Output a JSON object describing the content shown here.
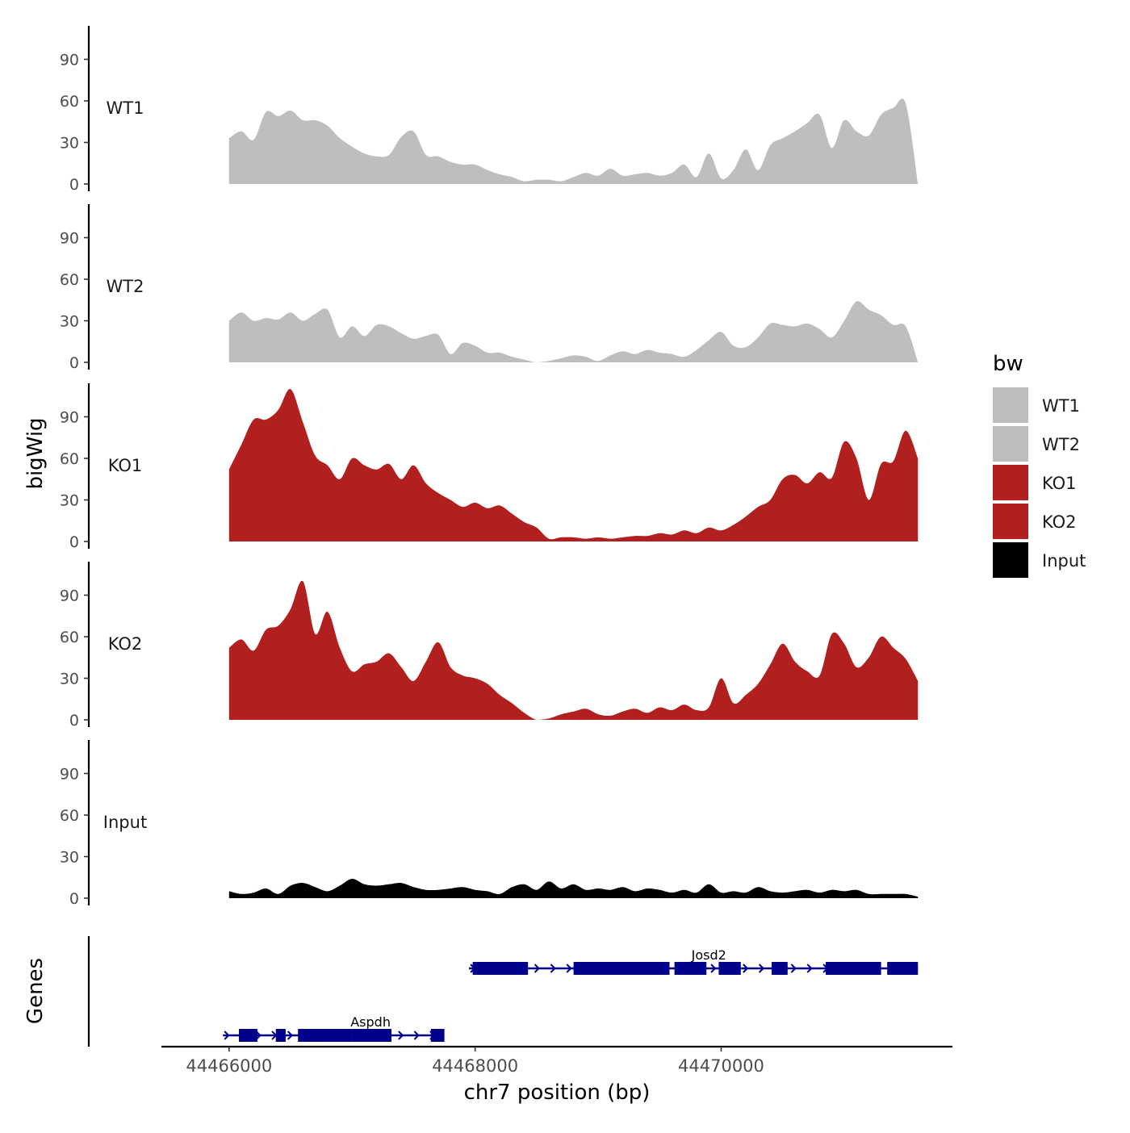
{
  "chart_data": {
    "type": "area",
    "chromosome": "chr7",
    "xlabel": "chr7 position (bp)",
    "ylabel": "bigWig",
    "genes_label": "Genes",
    "xlim": [
      44465450,
      44471880
    ],
    "x_ticks": [
      44466000,
      44468000,
      44470000
    ],
    "x_tick_labels": [
      "44466000",
      "44468000",
      "44470000"
    ],
    "ylim": [
      0,
      115
    ],
    "y_ticks": [
      0,
      30,
      60,
      90
    ],
    "y_tick_labels": [
      "0",
      "30",
      "60",
      "90"
    ],
    "region": [
      44466000,
      44471600
    ],
    "legend": {
      "title": "bw",
      "entries": [
        {
          "label": "WT1",
          "color": "#bebebe"
        },
        {
          "label": "WT2",
          "color": "#bebebe"
        },
        {
          "label": "KO1",
          "color": "#b21f1f"
        },
        {
          "label": "KO2",
          "color": "#b21f1f"
        },
        {
          "label": "Input",
          "color": "#000000"
        }
      ]
    },
    "series": [
      {
        "name": "WT1",
        "color": "#bebebe",
        "x": [
          44466000,
          44466100,
          44466200,
          44466300,
          44466400,
          44466500,
          44466600,
          44466700,
          44466800,
          44466900,
          44467000,
          44467100,
          44467200,
          44467300,
          44467400,
          44467500,
          44467600,
          44467700,
          44467800,
          44467900,
          44468000,
          44468100,
          44468200,
          44468300,
          44468400,
          44468500,
          44468600,
          44468700,
          44468800,
          44468900,
          44469000,
          44469100,
          44469200,
          44469300,
          44469400,
          44469500,
          44469600,
          44469700,
          44469800,
          44469900,
          44470000,
          44470100,
          44470200,
          44470300,
          44470400,
          44470500,
          44470600,
          44470700,
          44470800,
          44470900,
          44471000,
          44471100,
          44471200,
          44471300,
          44471400,
          44471500,
          44471600
        ],
        "values": [
          33,
          38,
          32,
          52,
          49,
          53,
          46,
          46,
          42,
          33,
          27,
          22,
          20,
          21,
          34,
          38,
          21,
          20,
          16,
          14,
          14,
          10,
          7,
          5,
          2,
          3,
          3,
          2,
          5,
          8,
          6,
          11,
          6,
          7,
          8,
          6,
          8,
          14,
          5,
          22,
          4,
          10,
          25,
          10,
          28,
          33,
          38,
          44,
          50,
          26,
          46,
          38,
          35,
          50,
          55,
          58,
          0
        ]
      },
      {
        "name": "WT2",
        "color": "#bebebe",
        "x": [
          44466000,
          44466100,
          44466200,
          44466300,
          44466400,
          44466500,
          44466600,
          44466700,
          44466800,
          44466900,
          44467000,
          44467100,
          44467200,
          44467300,
          44467400,
          44467500,
          44467600,
          44467700,
          44467800,
          44467900,
          44468000,
          44468100,
          44468200,
          44468300,
          44468400,
          44468500,
          44468600,
          44468700,
          44468800,
          44468900,
          44469000,
          44469100,
          44469200,
          44469300,
          44469400,
          44469500,
          44469600,
          44469700,
          44469800,
          44469900,
          44470000,
          44470100,
          44470200,
          44470300,
          44470400,
          44470500,
          44470600,
          44470700,
          44470800,
          44470900,
          44471000,
          44471100,
          44471200,
          44471300,
          44471400,
          44471500,
          44471600
        ],
        "values": [
          30,
          36,
          30,
          32,
          31,
          36,
          30,
          35,
          38,
          18,
          26,
          19,
          27,
          26,
          21,
          17,
          19,
          20,
          6,
          14,
          12,
          7,
          7,
          4,
          2,
          0,
          1,
          3,
          5,
          4,
          1,
          5,
          8,
          6,
          9,
          7,
          6,
          4,
          9,
          16,
          22,
          12,
          11,
          18,
          28,
          27,
          26,
          28,
          24,
          18,
          30,
          44,
          38,
          34,
          27,
          26,
          0
        ]
      },
      {
        "name": "KO1",
        "color": "#b21f1f",
        "x": [
          44466000,
          44466100,
          44466200,
          44466300,
          44466400,
          44466500,
          44466600,
          44466700,
          44466800,
          44466900,
          44467000,
          44467100,
          44467200,
          44467300,
          44467400,
          44467500,
          44467600,
          44467700,
          44467800,
          44467900,
          44468000,
          44468100,
          44468200,
          44468300,
          44468400,
          44468500,
          44468600,
          44468700,
          44468800,
          44468900,
          44469000,
          44469100,
          44469200,
          44469300,
          44469400,
          44469500,
          44469600,
          44469700,
          44469800,
          44469900,
          44470000,
          44470100,
          44470200,
          44470300,
          44470400,
          44470500,
          44470600,
          44470700,
          44470800,
          44470900,
          44471000,
          44471100,
          44471200,
          44471300,
          44471400,
          44471500,
          44471600
        ],
        "values": [
          52,
          70,
          88,
          88,
          95,
          110,
          86,
          62,
          55,
          45,
          60,
          55,
          52,
          56,
          45,
          55,
          42,
          35,
          30,
          25,
          28,
          24,
          26,
          20,
          14,
          10,
          2,
          3,
          3,
          2,
          3,
          2,
          3,
          4,
          4,
          6,
          5,
          8,
          6,
          10,
          8,
          12,
          18,
          25,
          30,
          45,
          48,
          42,
          50,
          46,
          72,
          60,
          30,
          56,
          58,
          80,
          60
        ]
      },
      {
        "name": "KO2",
        "color": "#b21f1f",
        "x": [
          44466000,
          44466100,
          44466200,
          44466300,
          44466400,
          44466500,
          44466600,
          44466700,
          44466800,
          44466900,
          44467000,
          44467100,
          44467200,
          44467300,
          44467400,
          44467500,
          44467600,
          44467700,
          44467800,
          44467900,
          44468000,
          44468100,
          44468200,
          44468300,
          44468400,
          44468500,
          44468600,
          44468700,
          44468800,
          44468900,
          44469000,
          44469100,
          44469200,
          44469300,
          44469400,
          44469500,
          44469600,
          44469700,
          44469800,
          44469900,
          44470000,
          44470100,
          44470200,
          44470300,
          44470400,
          44470500,
          44470600,
          44470700,
          44470800,
          44470900,
          44471000,
          44471100,
          44471200,
          44471300,
          44471400,
          44471500,
          44471600
        ],
        "values": [
          52,
          58,
          50,
          65,
          68,
          80,
          100,
          62,
          78,
          52,
          35,
          40,
          42,
          48,
          38,
          28,
          42,
          56,
          38,
          32,
          30,
          26,
          18,
          12,
          5,
          0,
          1,
          4,
          6,
          8,
          4,
          3,
          6,
          8,
          5,
          9,
          7,
          11,
          7,
          9,
          30,
          12,
          18,
          26,
          40,
          55,
          42,
          35,
          32,
          62,
          55,
          38,
          45,
          60,
          52,
          44,
          28
        ]
      },
      {
        "name": "Input",
        "color": "#000000",
        "x": [
          44466000,
          44466100,
          44466200,
          44466300,
          44466400,
          44466500,
          44466600,
          44466700,
          44466800,
          44466900,
          44467000,
          44467100,
          44467200,
          44467300,
          44467400,
          44467500,
          44467600,
          44467700,
          44467800,
          44467900,
          44468000,
          44468100,
          44468200,
          44468300,
          44468400,
          44468500,
          44468600,
          44468700,
          44468800,
          44468900,
          44469000,
          44469100,
          44469200,
          44469300,
          44469400,
          44469500,
          44469600,
          44469700,
          44469800,
          44469900,
          44470000,
          44470100,
          44470200,
          44470300,
          44470400,
          44470500,
          44470600,
          44470700,
          44470800,
          44470900,
          44471000,
          44471100,
          44471200,
          44471300,
          44471400,
          44471500,
          44471600
        ],
        "values": [
          5,
          3,
          4,
          7,
          3,
          9,
          11,
          8,
          5,
          9,
          14,
          10,
          9,
          10,
          11,
          8,
          6,
          6,
          7,
          8,
          6,
          5,
          3,
          8,
          10,
          6,
          12,
          7,
          10,
          6,
          7,
          6,
          8,
          5,
          7,
          6,
          4,
          6,
          4,
          10,
          4,
          5,
          4,
          8,
          5,
          4,
          5,
          6,
          4,
          6,
          5,
          6,
          3,
          3,
          3,
          3,
          1
        ]
      }
    ],
    "genes": [
      {
        "name": "Josd2",
        "strand": "+",
        "start": 44467950,
        "end": 44471600,
        "label_pos": 44469900,
        "exons": [
          [
            44467980,
            44468430
          ],
          [
            44468800,
            44469580
          ],
          [
            44469620,
            44469880
          ],
          [
            44469980,
            44470160
          ],
          [
            44470410,
            44470540
          ],
          [
            44470850,
            44471300
          ],
          [
            44471350,
            44471600
          ]
        ]
      },
      {
        "name": "Aspdh",
        "strand": "+",
        "start": 44465950,
        "end": 44467750,
        "label_pos": 44467150,
        "exons": [
          [
            44466080,
            44466230
          ],
          [
            44466380,
            44466460
          ],
          [
            44466560,
            44467000
          ],
          [
            44467000,
            44467320
          ],
          [
            44467640,
            44467750
          ]
        ]
      }
    ]
  }
}
